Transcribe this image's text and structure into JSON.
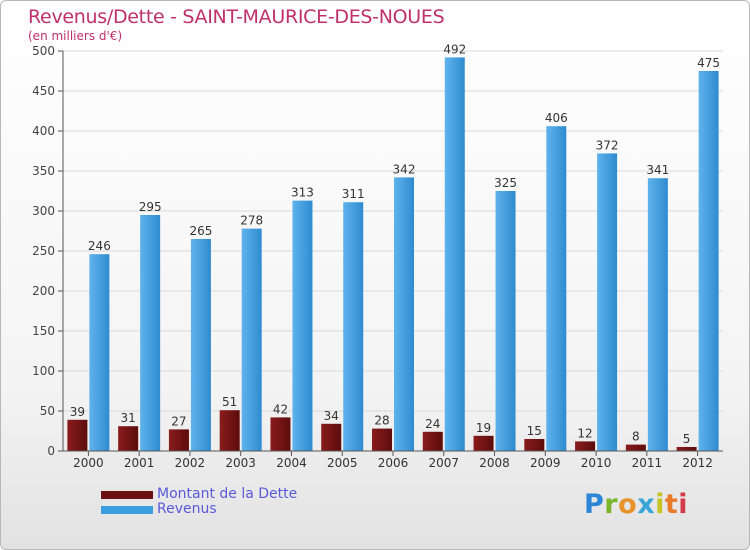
{
  "chart_data": {
    "type": "bar",
    "title": "Revenus/Dette - SAINT-MAURICE-DES-NOUES",
    "subtitle": "(en milliers d'€)",
    "categories": [
      "2000",
      "2001",
      "2002",
      "2003",
      "2004",
      "2005",
      "2006",
      "2007",
      "2008",
      "2009",
      "2010",
      "2011",
      "2012"
    ],
    "series": [
      {
        "name": "Montant de la Dette",
        "color": "#7a1414",
        "values": [
          39,
          31,
          27,
          51,
          42,
          34,
          28,
          24,
          19,
          15,
          12,
          8,
          5
        ]
      },
      {
        "name": "Revenus",
        "color": "#3b9ee0",
        "values": [
          246,
          295,
          265,
          278,
          313,
          311,
          342,
          492,
          325,
          406,
          372,
          341,
          475
        ]
      }
    ],
    "ylim": [
      0,
      500
    ],
    "yticks": [
      "0",
      "50",
      "100",
      "150",
      "200",
      "250",
      "300",
      "350",
      "400",
      "450",
      "500"
    ],
    "grid": true,
    "legend_position": "bottom-left"
  },
  "brand": {
    "logo_text": "Proxiti"
  }
}
